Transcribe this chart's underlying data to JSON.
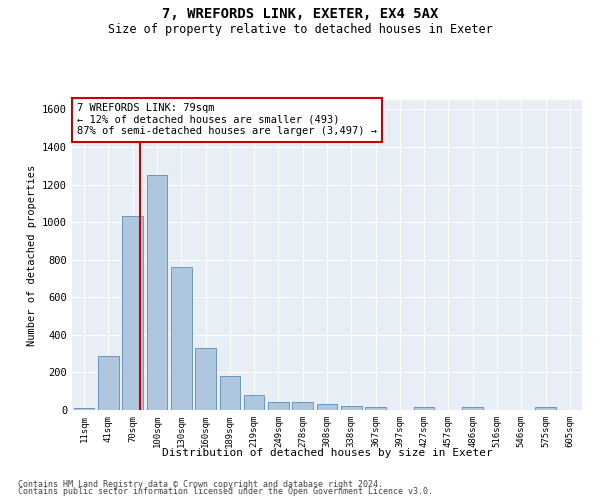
{
  "title1": "7, WREFORDS LINK, EXETER, EX4 5AX",
  "title2": "Size of property relative to detached houses in Exeter",
  "xlabel": "Distribution of detached houses by size in Exeter",
  "ylabel": "Number of detached properties",
  "bar_labels": [
    "11sqm",
    "41sqm",
    "70sqm",
    "100sqm",
    "130sqm",
    "160sqm",
    "189sqm",
    "219sqm",
    "249sqm",
    "278sqm",
    "308sqm",
    "338sqm",
    "367sqm",
    "397sqm",
    "427sqm",
    "457sqm",
    "486sqm",
    "516sqm",
    "546sqm",
    "575sqm",
    "605sqm"
  ],
  "bar_values": [
    10,
    285,
    1035,
    1250,
    760,
    330,
    180,
    80,
    45,
    40,
    30,
    20,
    15,
    0,
    15,
    0,
    15,
    0,
    0,
    15,
    0
  ],
  "bar_color": "#aec6de",
  "bar_edge_color": "#5a8db5",
  "vline_color": "#cc0000",
  "annotation_text": "7 WREFORDS LINK: 79sqm\n← 12% of detached houses are smaller (493)\n87% of semi-detached houses are larger (3,497) →",
  "annotation_box_facecolor": "#ffffff",
  "annotation_box_edgecolor": "#cc0000",
  "ylim": [
    0,
    1650
  ],
  "yticks": [
    0,
    200,
    400,
    600,
    800,
    1000,
    1200,
    1400,
    1600
  ],
  "bg_color": "#e8eef6",
  "footer1": "Contains HM Land Registry data © Crown copyright and database right 2024.",
  "footer2": "Contains public sector information licensed under the Open Government Licence v3.0."
}
